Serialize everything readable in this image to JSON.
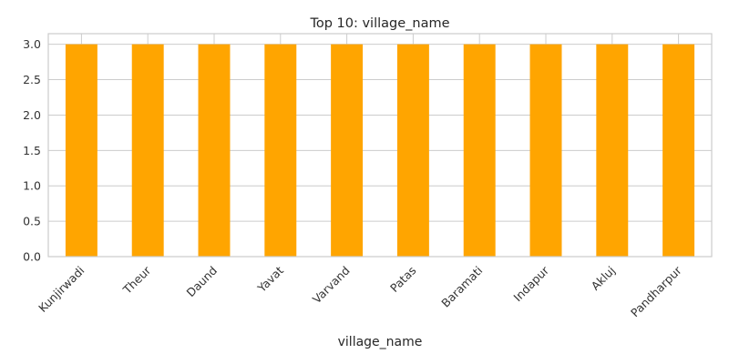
{
  "chart_data": {
    "type": "bar",
    "title": "Top 10: village_name",
    "xlabel": "village_name",
    "ylabel": "",
    "categories": [
      "Kunjirwadi",
      "Theur",
      "Daund",
      "Yavat",
      "Varvand",
      "Patas",
      "Baramati",
      "Indapur",
      "Akluj",
      "Pandharpur"
    ],
    "values": [
      3,
      3,
      3,
      3,
      3,
      3,
      3,
      3,
      3,
      3
    ],
    "ylim": [
      0,
      3.15
    ],
    "yticks": [
      "0.0",
      "0.5",
      "1.0",
      "1.5",
      "2.0",
      "2.5",
      "3.0"
    ],
    "grid": true,
    "bar_color": "#FFA500",
    "grid_color": "#cccccc",
    "axis_color": "#cccccc"
  }
}
